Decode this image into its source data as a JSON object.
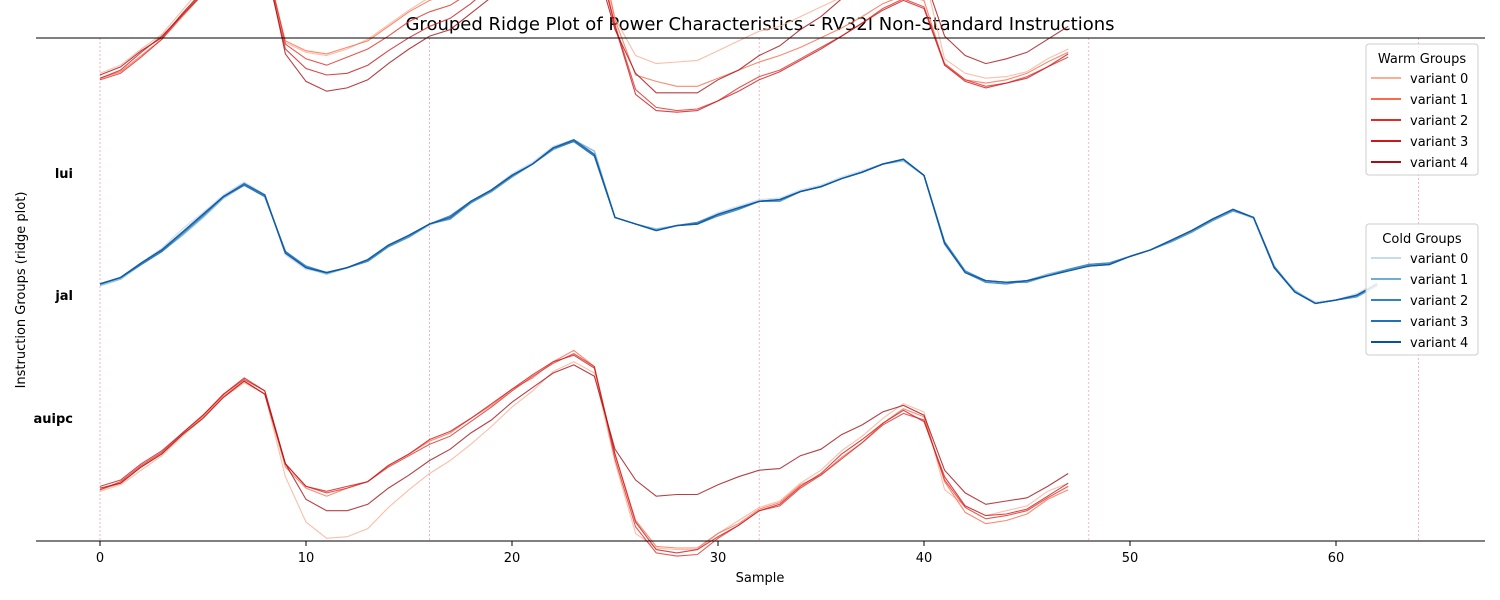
{
  "chart_data": {
    "type": "line",
    "title": "Grouped Ridge Plot of Power Characteristics - RV32I Non-Standard Instructions",
    "xlabel": "Sample",
    "ylabel": "Instruction Groups (ridge plot)",
    "xlim": [
      -3.2,
      67.4
    ],
    "xticks": [
      0,
      10,
      20,
      30,
      40,
      50,
      60
    ],
    "vlines": [
      0,
      16,
      32,
      48,
      64
    ],
    "colors": {
      "warm": [
        "#fcae91",
        "#fb6a4a",
        "#de2d26",
        "#cb181d",
        "#a50f15"
      ],
      "cold": [
        "#c6dbef",
        "#6baed6",
        "#3182bd",
        "#2171b5",
        "#08519c"
      ],
      "vline": "#f4a3b4"
    },
    "groups": [
      {
        "name": "lui",
        "palette": "warm",
        "series": [
          {
            "values": [
              0.93,
              0.98,
              1.08,
              1.17,
              1.32,
              1.47,
              1.65,
              1.73,
              1.67,
              1.12,
              1.06,
              1.04,
              1.08,
              1.14,
              1.23,
              1.32,
              1.4,
              1.46,
              1.56,
              1.64,
              1.73,
              1.84,
              1.95,
              2.0,
              1.87,
              1.27,
              1.04,
              0.99,
              1.0,
              1.01,
              1.07,
              1.13,
              1.19,
              1.22,
              1.28,
              1.34,
              1.4,
              1.47,
              1.54,
              1.61,
              1.54,
              1.02,
              0.93,
              0.9,
              0.91,
              0.94,
              1.02,
              1.08
            ]
          },
          {
            "values": [
              0.9,
              0.94,
              1.04,
              1.14,
              1.28,
              1.42,
              1.59,
              1.71,
              1.62,
              1.13,
              1.07,
              1.05,
              1.09,
              1.13,
              1.22,
              1.31,
              1.38,
              1.42,
              1.51,
              1.62,
              1.72,
              1.81,
              1.91,
              1.96,
              1.84,
              1.26,
              0.92,
              0.88,
              0.85,
              0.85,
              0.9,
              0.95,
              1.0,
              1.04,
              1.09,
              1.15,
              1.21,
              1.28,
              1.36,
              1.41,
              1.38,
              0.98,
              0.89,
              0.87,
              0.89,
              0.93,
              1.0,
              1.06
            ]
          },
          {
            "values": [
              0.89,
              0.93,
              1.03,
              1.14,
              1.29,
              1.43,
              1.59,
              1.7,
              1.65,
              1.11,
              1.02,
              0.98,
              1.03,
              1.08,
              1.16,
              1.25,
              1.31,
              1.35,
              1.43,
              1.54,
              1.63,
              1.71,
              1.81,
              1.87,
              1.74,
              1.23,
              0.83,
              0.72,
              0.7,
              0.71,
              0.76,
              0.84,
              0.91,
              0.95,
              1.02,
              1.09,
              1.16,
              1.24,
              1.33,
              1.39,
              1.34,
              0.99,
              0.89,
              0.85,
              0.87,
              0.91,
              0.97,
              1.03
            ]
          },
          {
            "values": [
              0.9,
              0.95,
              1.06,
              1.16,
              1.29,
              1.42,
              1.58,
              1.69,
              1.61,
              1.08,
              0.96,
              0.92,
              0.93,
              0.98,
              1.07,
              1.15,
              1.22,
              1.27,
              1.36,
              1.47,
              1.58,
              1.67,
              1.78,
              1.84,
              1.72,
              1.22,
              0.8,
              0.7,
              0.69,
              0.7,
              0.76,
              0.82,
              0.89,
              0.94,
              1.01,
              1.08,
              1.16,
              1.24,
              1.32,
              1.38,
              1.33,
              0.98,
              0.88,
              0.84,
              0.87,
              0.9,
              0.97,
              1.05
            ]
          },
          {
            "values": [
              0.92,
              0.97,
              1.07,
              1.15,
              1.3,
              1.44,
              1.61,
              1.7,
              1.64,
              1.05,
              0.88,
              0.82,
              0.84,
              0.89,
              0.99,
              1.08,
              1.16,
              1.2,
              1.3,
              1.4,
              1.51,
              1.61,
              1.72,
              1.78,
              1.64,
              1.2,
              0.93,
              0.81,
              0.81,
              0.81,
              0.89,
              0.95,
              1.04,
              1.1,
              1.2,
              1.28,
              1.39,
              1.47,
              1.55,
              1.61,
              1.53,
              1.16,
              1.04,
              0.99,
              1.02,
              1.06,
              1.14,
              1.22
            ]
          }
        ]
      },
      {
        "name": "jal",
        "palette": "cold",
        "series": [
          {
            "values": [
              0.38,
              0.42,
              0.51,
              0.6,
              0.72,
              0.82,
              0.93,
              1.01,
              0.93,
              0.56,
              0.47,
              0.45,
              0.48,
              0.53,
              0.61,
              0.67,
              0.74,
              0.8,
              0.89,
              0.96,
              1.06,
              1.13,
              1.23,
              1.27,
              1.18,
              0.79,
              0.75,
              0.71,
              0.74,
              0.76,
              0.82,
              0.86,
              0.9,
              0.91,
              0.96,
              0.99,
              1.04,
              1.08,
              1.12,
              1.15,
              1.05,
              0.62,
              0.45,
              0.4,
              0.39,
              0.4,
              0.43,
              0.46,
              0.49,
              0.5,
              0.55,
              0.59,
              0.65,
              0.71,
              0.78,
              0.84,
              0.78,
              0.48,
              0.33,
              0.27,
              0.28,
              0.32,
              0.39
            ]
          },
          {
            "values": [
              0.37,
              0.41,
              0.5,
              0.58,
              0.68,
              0.79,
              0.91,
              0.99,
              0.93,
              0.57,
              0.48,
              0.44,
              0.48,
              0.52,
              0.61,
              0.68,
              0.75,
              0.79,
              0.88,
              0.96,
              1.05,
              1.12,
              1.22,
              1.27,
              1.2,
              0.79,
              0.75,
              0.72,
              0.74,
              0.75,
              0.8,
              0.84,
              0.89,
              0.9,
              0.95,
              0.98,
              1.03,
              1.07,
              1.12,
              1.14,
              1.05,
              0.64,
              0.46,
              0.4,
              0.39,
              0.4,
              0.44,
              0.47,
              0.5,
              0.51,
              0.55,
              0.59,
              0.65,
              0.71,
              0.78,
              0.84,
              0.79,
              0.48,
              0.34,
              0.26,
              0.28,
              0.31,
              0.38
            ]
          },
          {
            "values": [
              0.38,
              0.42,
              0.51,
              0.59,
              0.7,
              0.81,
              0.92,
              0.99,
              0.92,
              0.58,
              0.48,
              0.45,
              0.48,
              0.52,
              0.61,
              0.67,
              0.75,
              0.78,
              0.88,
              0.95,
              1.04,
              1.12,
              1.21,
              1.26,
              1.17,
              0.79,
              0.75,
              0.71,
              0.74,
              0.75,
              0.8,
              0.84,
              0.89,
              0.89,
              0.95,
              0.98,
              1.03,
              1.07,
              1.12,
              1.15,
              1.05,
              0.64,
              0.46,
              0.4,
              0.39,
              0.39,
              0.43,
              0.47,
              0.5,
              0.51,
              0.55,
              0.59,
              0.64,
              0.7,
              0.77,
              0.83,
              0.79,
              0.49,
              0.33,
              0.26,
              0.28,
              0.3,
              0.37
            ]
          },
          {
            "values": [
              0.38,
              0.42,
              0.5,
              0.58,
              0.69,
              0.8,
              0.92,
              0.99,
              0.92,
              0.58,
              0.49,
              0.45,
              0.48,
              0.53,
              0.62,
              0.68,
              0.75,
              0.8,
              0.89,
              0.96,
              1.05,
              1.12,
              1.22,
              1.26,
              1.17,
              0.79,
              0.75,
              0.71,
              0.74,
              0.76,
              0.81,
              0.85,
              0.89,
              0.9,
              0.95,
              0.98,
              1.03,
              1.07,
              1.12,
              1.15,
              1.05,
              0.63,
              0.45,
              0.39,
              0.38,
              0.4,
              0.43,
              0.46,
              0.49,
              0.5,
              0.55,
              0.59,
              0.65,
              0.71,
              0.78,
              0.84,
              0.79,
              0.48,
              0.33,
              0.26,
              0.28,
              0.31,
              0.38
            ]
          },
          {
            "values": [
              0.38,
              0.42,
              0.51,
              0.59,
              0.7,
              0.81,
              0.92,
              1.0,
              0.93,
              0.57,
              0.48,
              0.45,
              0.48,
              0.53,
              0.62,
              0.68,
              0.75,
              0.79,
              0.89,
              0.96,
              1.05,
              1.12,
              1.22,
              1.27,
              1.18,
              0.79,
              0.75,
              0.71,
              0.74,
              0.75,
              0.81,
              0.85,
              0.89,
              0.9,
              0.95,
              0.98,
              1.03,
              1.07,
              1.12,
              1.15,
              1.05,
              0.63,
              0.45,
              0.4,
              0.39,
              0.4,
              0.43,
              0.46,
              0.49,
              0.5,
              0.55,
              0.59,
              0.65,
              0.71,
              0.78,
              0.84,
              0.79,
              0.48,
              0.33,
              0.26,
              0.28,
              0.31,
              0.38
            ]
          }
        ]
      },
      {
        "name": "auipc",
        "palette": "warm",
        "series": [
          {
            "values": -0.15,
            "_skip": true
          }
        ]
      }
    ]
  }
}
